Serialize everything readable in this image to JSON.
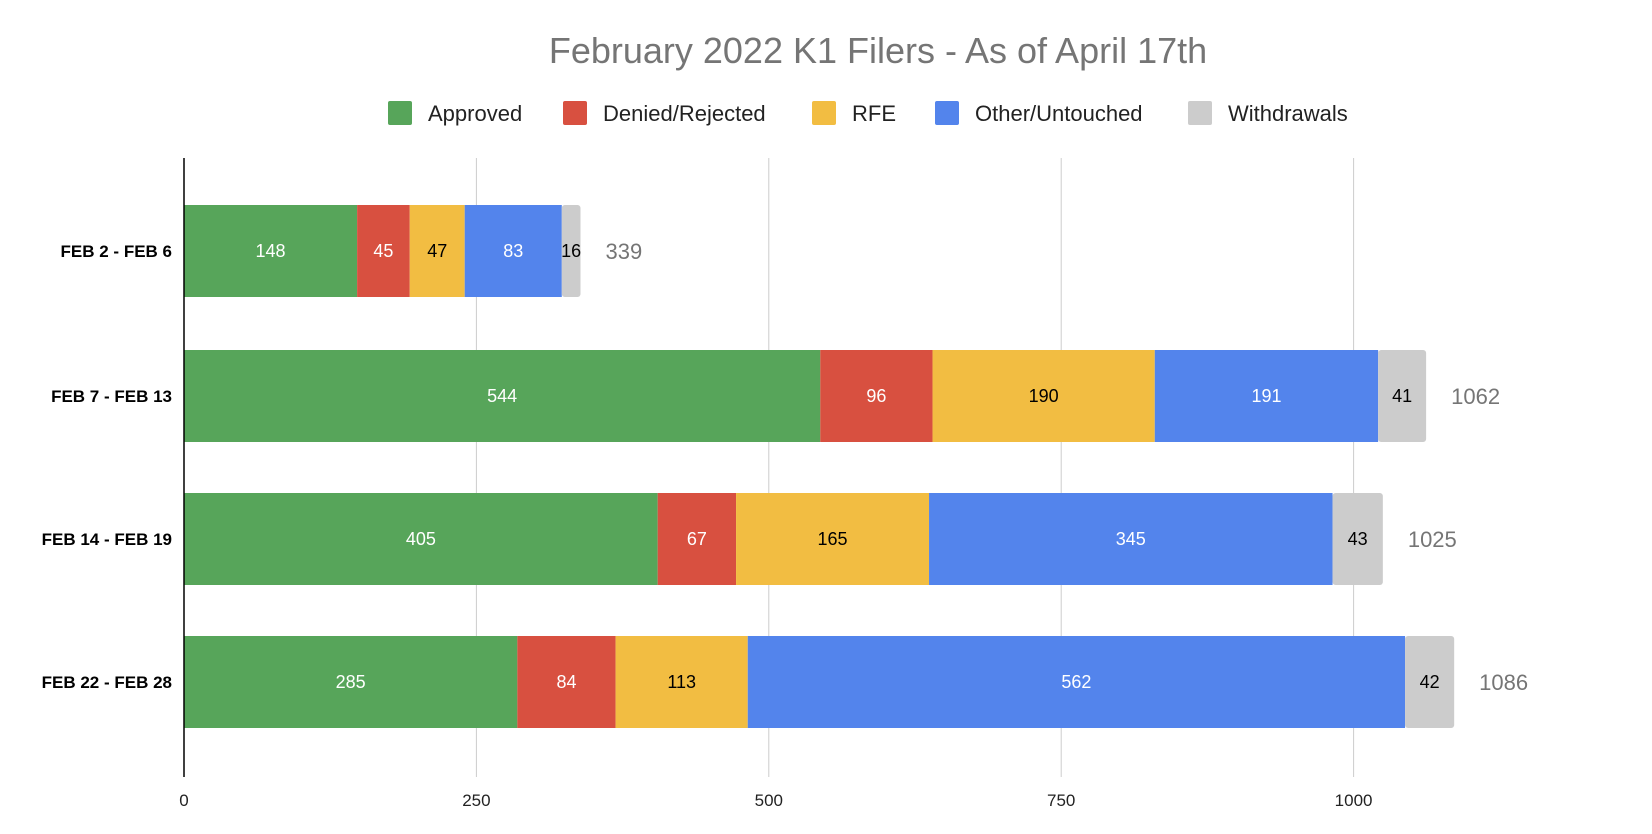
{
  "chart_data": {
    "type": "bar",
    "orientation": "horizontal",
    "stacked": true,
    "title": "February 2022 K1 Filers - As of April 17th",
    "xlabel": "",
    "ylabel": "",
    "categories": [
      "FEB 2 - FEB 6",
      "FEB 7 - FEB 13",
      "FEB 14 - FEB 19",
      "FEB 22 - FEB 28"
    ],
    "series": [
      {
        "name": "Approved",
        "color": "#57a55a",
        "label_color": "#ffffff",
        "values": [
          148,
          544,
          405,
          285
        ]
      },
      {
        "name": "Denied/Rejected",
        "color": "#d85040",
        "label_color": "#ffffff",
        "values": [
          45,
          96,
          67,
          84
        ]
      },
      {
        "name": "RFE",
        "color": "#f2bd42",
        "label_color": "#000000",
        "values": [
          47,
          190,
          165,
          113
        ]
      },
      {
        "name": "Other/Untouched",
        "color": "#5384ec",
        "label_color": "#ffffff",
        "values": [
          83,
          191,
          345,
          562
        ]
      },
      {
        "name": "Withdrawals",
        "color": "#cccccc",
        "label_color": "#000000",
        "values": [
          16,
          41,
          43,
          42
        ]
      }
    ],
    "totals": [
      339,
      1062,
      1025,
      1086
    ],
    "xlim": [
      0,
      1150
    ],
    "xticks": [
      0,
      250,
      500,
      750,
      1000
    ],
    "grid": true,
    "legend_position": "top"
  }
}
